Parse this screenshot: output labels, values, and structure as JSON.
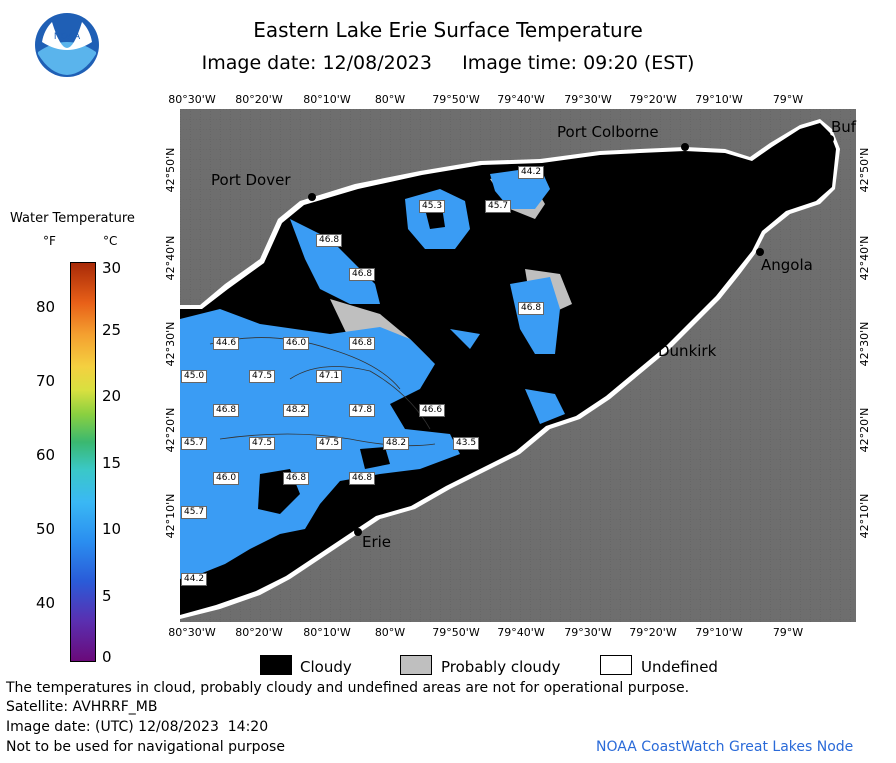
{
  "header": {
    "title": "Eastern Lake Erie Surface Temperature",
    "subtitle": "Image date: 12/08/2023     Image time: 09:20 (EST)",
    "logo_text": "NOAA"
  },
  "axes": {
    "lon_ticks": [
      "80°30'W",
      "80°20'W",
      "80°10'W",
      "80°W",
      "79°50'W",
      "79°40'W",
      "79°30'W",
      "79°20'W",
      "79°10'W",
      "79°W"
    ],
    "lat_ticks": [
      "42°50'N",
      "42°40'N",
      "42°30'N",
      "42°20'N",
      "42°10'N"
    ]
  },
  "places": [
    {
      "name": "Port Colborne"
    },
    {
      "name": "Buf"
    },
    {
      "name": "Port Dover"
    },
    {
      "name": "Angola"
    },
    {
      "name": "Dunkirk"
    },
    {
      "name": "Erie"
    }
  ],
  "temperature_labels": [
    "44.2",
    "45.3",
    "45.7",
    "46.8",
    "46.8",
    "46.8",
    "44.6",
    "46.0",
    "46.8",
    "45.0",
    "47.5",
    "47.1",
    "46.8",
    "48.2",
    "47.8",
    "46.6",
    "45.7",
    "47.5",
    "47.5",
    "48.2",
    "43.5",
    "46.0",
    "46.8",
    "46.8",
    "45.7",
    "44.2"
  ],
  "legend": {
    "title": "Water Temperature",
    "unit_f": "°F",
    "unit_c": "°C",
    "f_ticks": [
      "80",
      "70",
      "60",
      "50",
      "40"
    ],
    "c_ticks": [
      "30",
      "25",
      "20",
      "15",
      "10",
      "5",
      "0"
    ],
    "colors": {
      "cloudy": "#000000",
      "probably_cloudy": "#bfbfbf",
      "undefined": "#ffffff",
      "land": "#6e6e6e",
      "water_warm": "#3a9cf4",
      "water_cool": "#4aaaf8"
    }
  },
  "key": {
    "cloudy": "Cloudy",
    "probably_cloudy": "Probably cloudy",
    "undefined": "Undefined"
  },
  "footer": {
    "disclaimer": "The temperatures in cloud, probably cloudy and undefined areas are not for operational purpose.",
    "satellite": "Satellite: AVHRRF_MB",
    "utc_date": "Image date: (UTC) 12/08/2023  14:20",
    "nav_warning": "Not to be used for navigational purpose",
    "credit": "NOAA CoastWatch Great Lakes Node"
  }
}
